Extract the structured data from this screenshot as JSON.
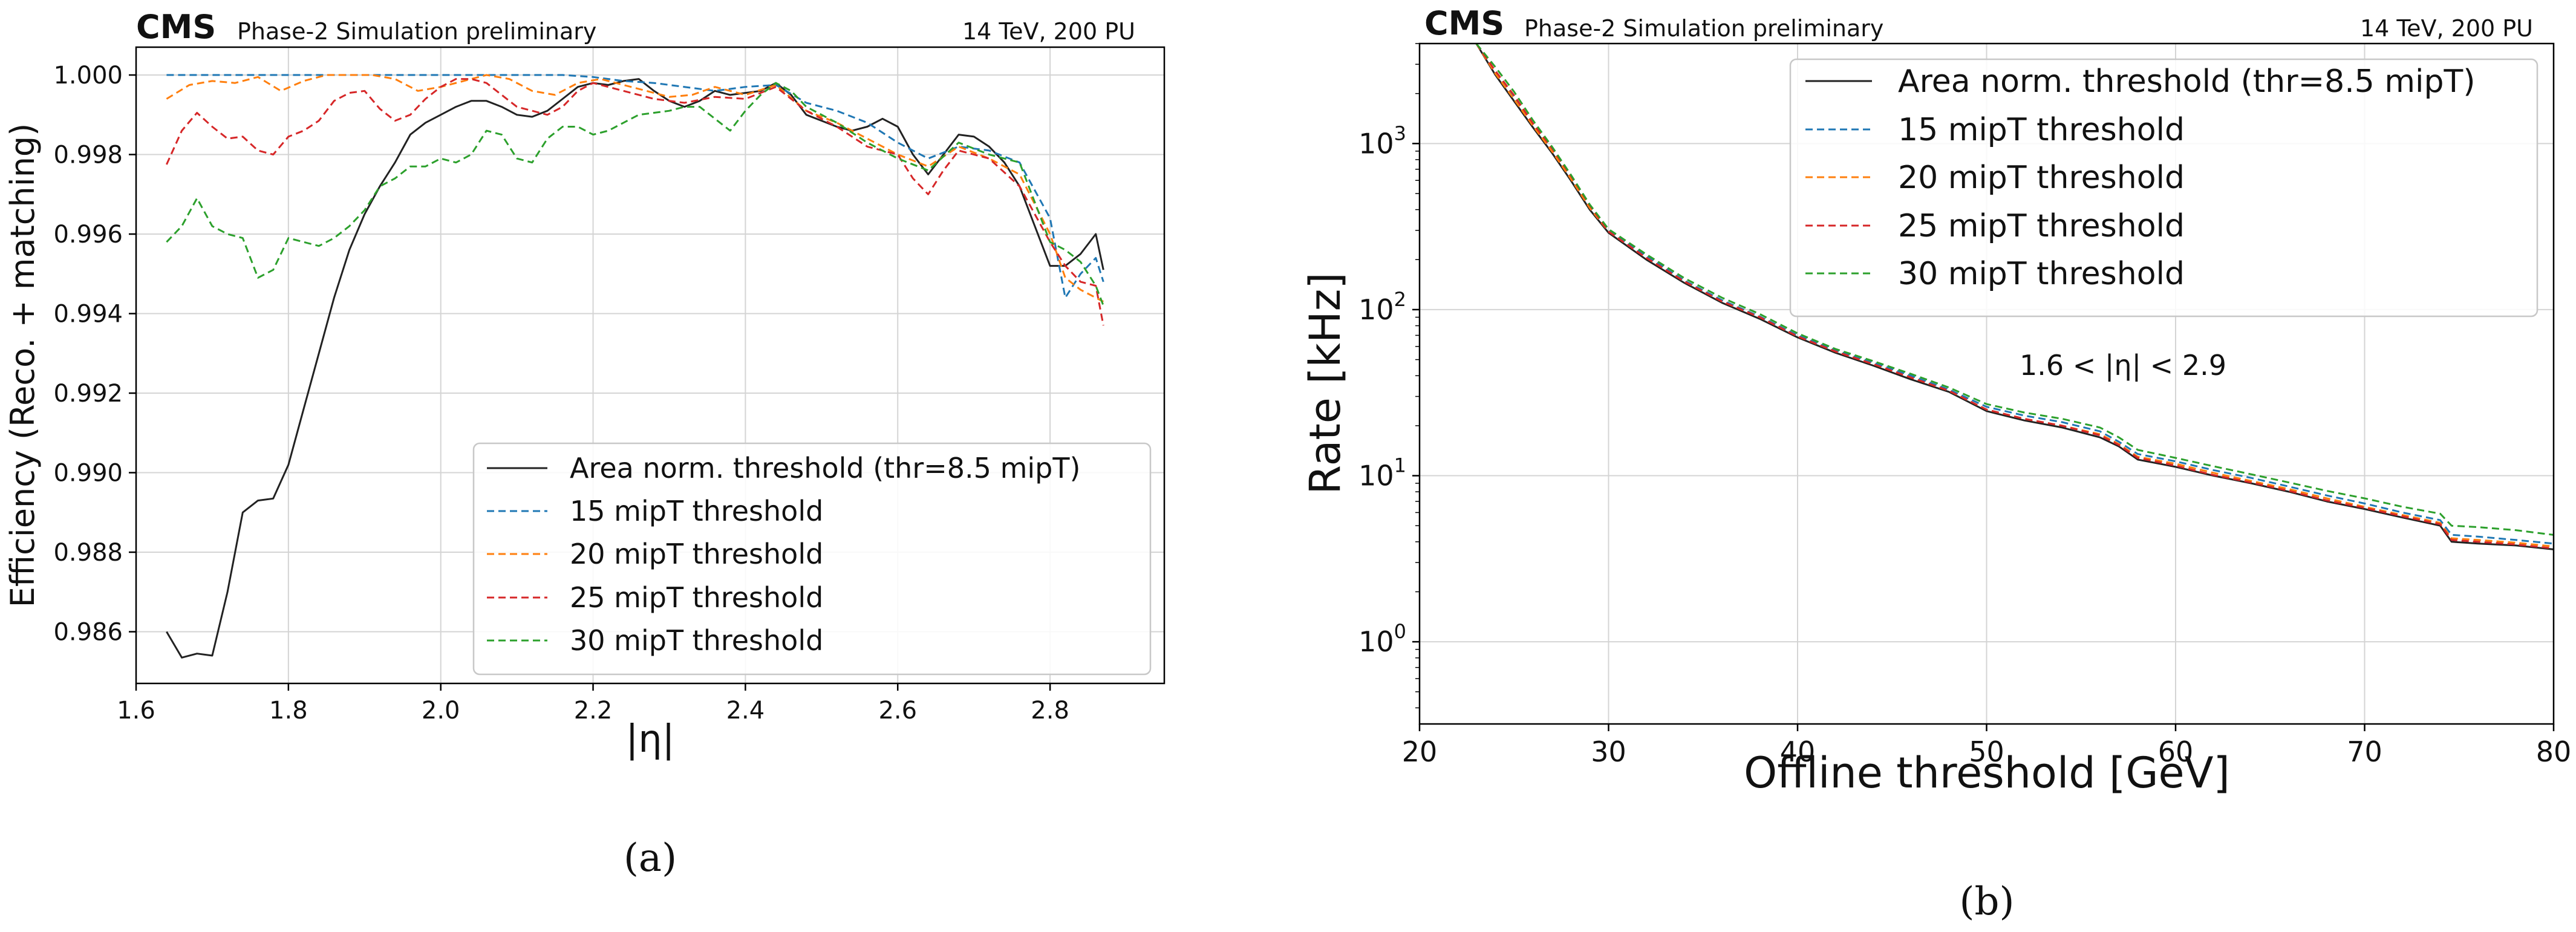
{
  "chart_data": [
    {
      "type": "line",
      "header": {
        "experiment": "CMS",
        "status": "Phase-2 Simulation preliminary",
        "conditions": "14 TeV, 200 PU"
      },
      "title": "",
      "xlabel": "|η|",
      "ylabel": "Efficiency (Reco. + matching)",
      "xlim": [
        1.6,
        2.95
      ],
      "ylim": [
        0.9847,
        1.0007
      ],
      "grid": true,
      "legend_position": "lower-right",
      "xticks": [
        1.6,
        1.8,
        2.0,
        2.2,
        2.4,
        2.6,
        2.8
      ],
      "xtick_labels": [
        "1.6",
        "1.8",
        "2.0",
        "2.2",
        "2.4",
        "2.6",
        "2.8"
      ],
      "yticks": [
        0.986,
        0.988,
        0.99,
        0.992,
        0.994,
        0.996,
        0.998,
        1.0
      ],
      "ytick_labels": [
        "0.986",
        "0.988",
        "0.990",
        "0.992",
        "0.994",
        "0.996",
        "0.998",
        "1.000"
      ],
      "caption": "(a)",
      "series": [
        {
          "name": "Area norm. threshold (thr=8.5 mipT)",
          "color": "#222222",
          "style": "solid",
          "x": [
            1.64,
            1.66,
            1.68,
            1.7,
            1.72,
            1.74,
            1.76,
            1.78,
            1.8,
            1.82,
            1.84,
            1.86,
            1.88,
            1.9,
            1.92,
            1.94,
            1.96,
            1.98,
            2.0,
            2.02,
            2.04,
            2.06,
            2.08,
            2.1,
            2.12,
            2.14,
            2.16,
            2.18,
            2.2,
            2.22,
            2.24,
            2.26,
            2.28,
            2.3,
            2.32,
            2.34,
            2.36,
            2.38,
            2.4,
            2.42,
            2.44,
            2.46,
            2.48,
            2.5,
            2.52,
            2.54,
            2.56,
            2.58,
            2.6,
            2.62,
            2.64,
            2.66,
            2.68,
            2.7,
            2.72,
            2.74,
            2.76,
            2.78,
            2.8,
            2.82,
            2.84,
            2.86,
            2.87
          ],
          "y": [
            0.986,
            0.98535,
            0.98545,
            0.9854,
            0.987,
            0.989,
            0.9893,
            0.98935,
            0.9902,
            0.9916,
            0.993,
            0.9944,
            0.9956,
            0.9965,
            0.9972,
            0.9978,
            0.9985,
            0.9988,
            0.999,
            0.9992,
            0.99935,
            0.99935,
            0.9992,
            0.999,
            0.99895,
            0.9991,
            0.9994,
            0.9997,
            0.9998,
            0.99975,
            0.99985,
            0.9999,
            0.9996,
            0.99935,
            0.9992,
            0.99935,
            0.9996,
            0.9995,
            0.99955,
            0.9996,
            0.9998,
            0.9995,
            0.999,
            0.99885,
            0.9987,
            0.9986,
            0.9987,
            0.9989,
            0.9987,
            0.998,
            0.9975,
            0.998,
            0.9985,
            0.99845,
            0.9982,
            0.9978,
            0.9972,
            0.9962,
            0.9952,
            0.9952,
            0.9955,
            0.996,
            0.9951
          ]
        },
        {
          "name": "15 mipT threshold",
          "color": "#1f77b4",
          "style": "dashed",
          "x": [
            1.64,
            1.7,
            1.8,
            1.9,
            2.0,
            2.1,
            2.16,
            2.2,
            2.24,
            2.28,
            2.32,
            2.36,
            2.4,
            2.44,
            2.48,
            2.52,
            2.56,
            2.6,
            2.64,
            2.68,
            2.72,
            2.76,
            2.8,
            2.82,
            2.84,
            2.86,
            2.87
          ],
          "y": [
            1.0,
            1.0,
            1.0,
            1.0,
            1.0,
            1.0,
            1.0,
            0.99995,
            0.99985,
            0.9998,
            0.9997,
            0.9996,
            0.9997,
            0.99975,
            0.9993,
            0.9991,
            0.9988,
            0.9983,
            0.9979,
            0.9982,
            0.9981,
            0.9978,
            0.9964,
            0.9944,
            0.995,
            0.9954,
            0.9948
          ]
        },
        {
          "name": "20 mipT threshold",
          "color": "#ff7f0e",
          "style": "dashed",
          "x": [
            1.64,
            1.67,
            1.7,
            1.73,
            1.76,
            1.79,
            1.82,
            1.85,
            1.88,
            1.91,
            1.94,
            1.97,
            2.0,
            2.03,
            2.06,
            2.09,
            2.12,
            2.15,
            2.18,
            2.21,
            2.24,
            2.27,
            2.3,
            2.33,
            2.36,
            2.4,
            2.44,
            2.48,
            2.52,
            2.56,
            2.6,
            2.64,
            2.68,
            2.72,
            2.76,
            2.8,
            2.82,
            2.84,
            2.86,
            2.87
          ],
          "y": [
            0.9994,
            0.99975,
            0.99985,
            0.9998,
            0.99995,
            0.9996,
            0.99985,
            1.0,
            1.0,
            1.0,
            0.9999,
            0.9996,
            0.9997,
            0.99985,
            1.0,
            0.9999,
            0.9996,
            0.9995,
            0.9998,
            0.9999,
            0.99975,
            0.9996,
            0.99945,
            0.9995,
            0.9997,
            0.9995,
            0.99975,
            0.9991,
            0.9988,
            0.9984,
            0.998,
            0.9977,
            0.9982,
            0.9979,
            0.9975,
            0.996,
            0.9949,
            0.9946,
            0.9944,
            0.9943
          ]
        },
        {
          "name": "25 mipT threshold",
          "color": "#d62728",
          "style": "dashed",
          "x": [
            1.64,
            1.66,
            1.68,
            1.7,
            1.72,
            1.74,
            1.76,
            1.78,
            1.8,
            1.82,
            1.84,
            1.86,
            1.88,
            1.9,
            1.92,
            1.94,
            1.96,
            1.98,
            2.0,
            2.02,
            2.04,
            2.06,
            2.08,
            2.1,
            2.12,
            2.14,
            2.16,
            2.18,
            2.2,
            2.24,
            2.28,
            2.32,
            2.36,
            2.4,
            2.44,
            2.48,
            2.52,
            2.56,
            2.6,
            2.62,
            2.64,
            2.66,
            2.68,
            2.72,
            2.76,
            2.8,
            2.82,
            2.84,
            2.86,
            2.87
          ],
          "y": [
            0.99775,
            0.9986,
            0.99905,
            0.9987,
            0.9984,
            0.99845,
            0.9981,
            0.998,
            0.99845,
            0.9986,
            0.99885,
            0.99935,
            0.99955,
            0.9996,
            0.99915,
            0.99885,
            0.999,
            0.9994,
            0.9997,
            0.9999,
            0.9999,
            0.9998,
            0.9995,
            0.9992,
            0.9991,
            0.999,
            0.9992,
            0.9996,
            0.9998,
            0.9996,
            0.9994,
            0.9993,
            0.99945,
            0.9994,
            0.9997,
            0.9991,
            0.9987,
            0.9982,
            0.998,
            0.9974,
            0.997,
            0.9976,
            0.9981,
            0.9979,
            0.9972,
            0.9958,
            0.9952,
            0.9948,
            0.9947,
            0.9937
          ]
        },
        {
          "name": "30 mipT threshold",
          "color": "#2ca02c",
          "style": "dashed",
          "x": [
            1.64,
            1.66,
            1.68,
            1.7,
            1.72,
            1.74,
            1.76,
            1.78,
            1.8,
            1.82,
            1.84,
            1.86,
            1.88,
            1.9,
            1.92,
            1.94,
            1.96,
            1.98,
            2.0,
            2.02,
            2.04,
            2.06,
            2.08,
            2.1,
            2.12,
            2.14,
            2.16,
            2.18,
            2.2,
            2.22,
            2.24,
            2.26,
            2.28,
            2.3,
            2.32,
            2.34,
            2.36,
            2.38,
            2.4,
            2.42,
            2.44,
            2.46,
            2.48,
            2.52,
            2.56,
            2.6,
            2.64,
            2.68,
            2.72,
            2.76,
            2.8,
            2.82,
            2.84,
            2.86,
            2.87
          ],
          "y": [
            0.9958,
            0.9962,
            0.9969,
            0.9962,
            0.996,
            0.9959,
            0.9949,
            0.9951,
            0.9959,
            0.9958,
            0.9957,
            0.9959,
            0.9962,
            0.9966,
            0.9972,
            0.9974,
            0.9977,
            0.9977,
            0.9979,
            0.9978,
            0.998,
            0.9986,
            0.9985,
            0.9979,
            0.9978,
            0.9984,
            0.9987,
            0.9987,
            0.9985,
            0.9986,
            0.9988,
            0.999,
            0.99905,
            0.9991,
            0.9992,
            0.9992,
            0.9989,
            0.9986,
            0.9991,
            0.9995,
            0.9998,
            0.9996,
            0.9992,
            0.9988,
            0.9983,
            0.9979,
            0.9976,
            0.9983,
            0.998,
            0.9978,
            0.9958,
            0.9956,
            0.9953,
            0.9947,
            0.9942
          ]
        }
      ]
    },
    {
      "type": "line",
      "header": {
        "experiment": "CMS",
        "status": "Phase-2 Simulation preliminary",
        "conditions": "14 TeV, 200 PU"
      },
      "title": "",
      "xlabel": "Offline threshold [GeV]",
      "ylabel": "Rate [kHz]",
      "yscale": "log",
      "xlim": [
        20,
        80
      ],
      "ylim": [
        0.32,
        4000
      ],
      "grid": true,
      "legend_position": "upper-right",
      "annotation": "1.6 < |η| < 2.9",
      "xticks": [
        20,
        30,
        40,
        50,
        60,
        70,
        80
      ],
      "xtick_labels": [
        "20",
        "30",
        "40",
        "50",
        "60",
        "70",
        "80"
      ],
      "yticks": [
        1,
        10,
        100,
        1000
      ],
      "ytick_base": "10",
      "ytick_exponents": [
        "0",
        "1",
        "2",
        "3"
      ],
      "caption": "(b)",
      "series": [
        {
          "name": "Area norm. threshold (thr=8.5 mipT)",
          "color": "#222222",
          "style": "solid",
          "x": [
            23.0,
            24.0,
            25.0,
            26.0,
            27.0,
            28.0,
            29.0,
            30.0,
            32.0,
            34.0,
            36.0,
            38.0,
            40.0,
            42.0,
            44.0,
            46.0,
            48.0,
            50.0,
            52.0,
            54.0,
            56.0,
            57.0,
            58.0,
            60.0,
            62.0,
            64.0,
            66.0,
            68.0,
            70.0,
            72.0,
            74.0,
            74.6,
            76.0,
            78.0,
            80.0
          ],
          "y": [
            4000,
            2600,
            1800,
            1250,
            880,
            600,
            400,
            290,
            200,
            145,
            110,
            88,
            68,
            55,
            46,
            38,
            32,
            24.5,
            21.5,
            19.5,
            17.0,
            15.0,
            12.5,
            11.3,
            10.0,
            9.0,
            8.0,
            7.0,
            6.3,
            5.6,
            5.0,
            4.0,
            3.9,
            3.8,
            3.6
          ]
        },
        {
          "name": "15 mipT threshold",
          "color": "#1f77b4",
          "style": "dashed",
          "x": [
            23.0,
            24.0,
            25.0,
            26.0,
            27.0,
            28.0,
            29.0,
            30.0,
            32.0,
            34.0,
            36.0,
            38.0,
            40.0,
            42.0,
            44.0,
            46.0,
            48.0,
            50.0,
            52.0,
            54.0,
            56.0,
            57.0,
            58.0,
            60.0,
            62.0,
            64.0,
            66.0,
            68.0,
            70.0,
            72.0,
            74.0,
            74.6,
            76.0,
            78.0,
            80.0
          ],
          "y": [
            4000,
            2700,
            1900,
            1300,
            920,
            630,
            420,
            300,
            210,
            150,
            114,
            91,
            70,
            57,
            48,
            40,
            33,
            26,
            23,
            21,
            18.5,
            16,
            13.5,
            12.2,
            10.8,
            9.7,
            8.6,
            7.6,
            6.8,
            6.0,
            5.4,
            4.4,
            4.3,
            4.1,
            3.9
          ]
        },
        {
          "name": "20 mipT threshold",
          "color": "#ff7f0e",
          "style": "dashed",
          "x": [
            23.0,
            24.0,
            25.0,
            26.0,
            27.0,
            28.0,
            29.0,
            30.0,
            32.0,
            34.0,
            36.0,
            38.0,
            40.0,
            42.0,
            44.0,
            46.0,
            48.0,
            50.0,
            52.0,
            54.0,
            56.0,
            57.0,
            58.0,
            60.0,
            62.0,
            64.0,
            66.0,
            68.0,
            70.0,
            72.0,
            74.0,
            74.6,
            76.0,
            78.0,
            80.0
          ],
          "y": [
            4000,
            2650,
            1850,
            1280,
            900,
            615,
            410,
            295,
            205,
            148,
            112,
            90,
            69,
            56,
            47,
            39,
            32.5,
            25,
            22,
            20,
            17.8,
            15.5,
            13.0,
            11.8,
            10.4,
            9.3,
            8.3,
            7.3,
            6.5,
            5.8,
            5.2,
            4.2,
            4.1,
            3.95,
            3.75
          ]
        },
        {
          "name": "25 mipT threshold",
          "color": "#d62728",
          "style": "dashed",
          "x": [
            23.0,
            24.0,
            25.0,
            26.0,
            27.0,
            28.0,
            29.0,
            30.0,
            32.0,
            34.0,
            36.0,
            38.0,
            40.0,
            42.0,
            44.0,
            46.0,
            48.0,
            50.0,
            52.0,
            54.0,
            56.0,
            57.0,
            58.0,
            60.0,
            62.0,
            64.0,
            66.0,
            68.0,
            70.0,
            72.0,
            74.0,
            74.6,
            76.0,
            78.0,
            80.0
          ],
          "y": [
            4000,
            2750,
            1950,
            1320,
            940,
            640,
            425,
            295,
            205,
            148,
            112,
            90,
            69,
            56,
            47,
            39,
            32.5,
            25,
            22,
            20,
            17.5,
            15.3,
            12.8,
            11.5,
            10.1,
            9.1,
            8.1,
            7.1,
            6.4,
            5.7,
            5.1,
            4.1,
            4.0,
            3.85,
            3.65
          ]
        },
        {
          "name": "30 mipT threshold",
          "color": "#2ca02c",
          "style": "dashed",
          "x": [
            23.0,
            24.0,
            25.0,
            26.0,
            27.0,
            28.0,
            29.0,
            30.0,
            32.0,
            34.0,
            36.0,
            38.0,
            40.0,
            42.0,
            44.0,
            46.0,
            48.0,
            50.0,
            52.0,
            54.0,
            56.0,
            57.0,
            58.0,
            60.0,
            62.0,
            64.0,
            66.0,
            68.0,
            70.0,
            72.0,
            74.0,
            74.6,
            76.0,
            78.0,
            80.0
          ],
          "y": [
            4000,
            2900,
            2050,
            1380,
            960,
            650,
            430,
            305,
            215,
            155,
            118,
            94,
            72,
            58,
            49,
            41,
            34,
            27,
            24,
            22,
            19.5,
            17,
            14.3,
            12.8,
            11.4,
            10.2,
            9.1,
            8.1,
            7.3,
            6.5,
            5.9,
            5.0,
            4.9,
            4.7,
            4.4
          ]
        }
      ]
    }
  ]
}
